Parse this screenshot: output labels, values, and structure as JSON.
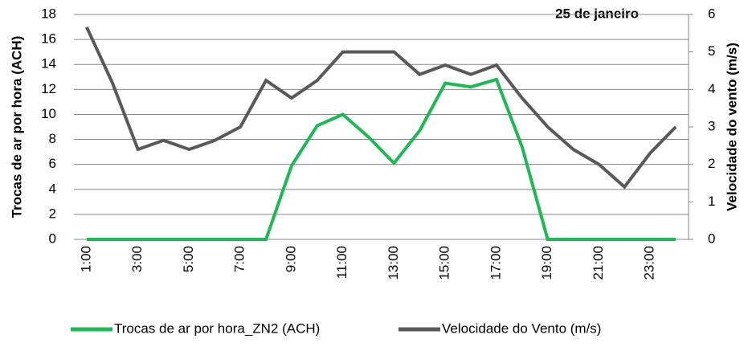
{
  "chart_data": {
    "type": "line",
    "annotation": "25 de janeiro",
    "y_label": "Trocas de ar por hora (ACH)",
    "y2_label": "Velocidade do vento (m/s)",
    "categories": [
      "1:00",
      null,
      "3:00",
      null,
      "5:00",
      null,
      "7:00",
      null,
      "9:00",
      null,
      "11:00",
      null,
      "13:00",
      null,
      "15:00",
      null,
      "17:00",
      null,
      "19:00",
      null,
      "21:00",
      null,
      "23:00",
      null
    ],
    "series": [
      {
        "name": "Trocas de ar por hora_ZN2 (ACH)",
        "color": "#1db954",
        "values": [
          0,
          0,
          0,
          0,
          0,
          0,
          0,
          0,
          5.9,
          9.1,
          10.0,
          8.2,
          6.1,
          8.7,
          12.5,
          12.2,
          12.8,
          7.4,
          0,
          0,
          0,
          0,
          0,
          0
        ]
      },
      {
        "name": "Velocidade do Vento (m/s)",
        "color": "#595959",
        "axis": "y2",
        "values": [
          5.66,
          4.18,
          2.4,
          2.64,
          2.4,
          2.64,
          3.0,
          4.24,
          3.77,
          4.24,
          5.0,
          5.0,
          5.0,
          4.4,
          4.65,
          4.4,
          4.65,
          3.77,
          3.0,
          2.4,
          2.0,
          1.4,
          2.3,
          3.0
        ]
      }
    ],
    "ylim": [
      0,
      18
    ],
    "yticks": [
      0,
      2,
      4,
      6,
      8,
      10,
      12,
      14,
      16,
      18
    ],
    "y2lim": [
      0,
      6
    ],
    "y2ticks": [
      0,
      1,
      2,
      3,
      4,
      5,
      6
    ],
    "grid": true,
    "legend": "bottom"
  }
}
